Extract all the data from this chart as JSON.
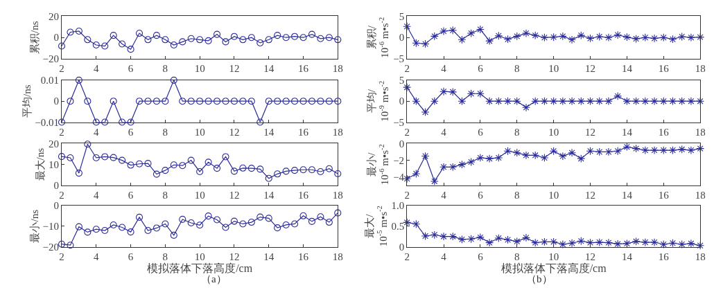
{
  "chart_data": [
    {
      "type": "line",
      "ylabel": "累积/ns",
      "color": "#2b2b9a",
      "marker": "circle",
      "xlim": [
        2,
        18
      ],
      "xticks": [
        2,
        4,
        6,
        8,
        10,
        12,
        14,
        16,
        18
      ],
      "ylim": [
        -20,
        20
      ],
      "yticks": [
        -20,
        0,
        20
      ],
      "x": [
        2,
        2.5,
        3,
        3.5,
        4,
        4.5,
        5,
        5.5,
        6,
        6.5,
        7,
        7.5,
        8,
        8.5,
        9,
        9.5,
        10,
        10.5,
        11,
        11.5,
        12,
        12.5,
        13,
        13.5,
        14,
        14.5,
        15,
        15.5,
        16,
        16.5,
        17,
        17.5,
        18
      ],
      "values": [
        -8,
        5,
        6,
        -2,
        -7,
        -8,
        2,
        -6,
        -11,
        4,
        -2,
        2,
        -2,
        -7,
        -4,
        -1,
        -2,
        -3,
        3,
        -4,
        1,
        -2,
        0,
        -5,
        -2,
        2,
        0,
        1,
        0,
        3,
        -1,
        0,
        -2
      ]
    },
    {
      "type": "line",
      "ylabel": "平均/ns",
      "color": "#2b2b9a",
      "marker": "circle",
      "xlim": [
        2,
        18
      ],
      "xticks": [
        2,
        4,
        6,
        8,
        10,
        12,
        14,
        16,
        18
      ],
      "ylim": [
        -0.01,
        0.01
      ],
      "yticks": [
        -0.01,
        0,
        0.01
      ],
      "x": [
        2,
        2.5,
        3,
        3.5,
        4,
        4.5,
        5,
        5.5,
        6,
        6.5,
        7,
        7.5,
        8,
        8.5,
        9,
        9.5,
        10,
        10.5,
        11,
        11.5,
        12,
        12.5,
        13,
        13.5,
        14,
        14.5,
        15,
        15.5,
        16,
        16.5,
        17,
        17.5,
        18
      ],
      "values": [
        -0.01,
        0,
        0.01,
        0,
        -0.01,
        -0.01,
        0,
        -0.01,
        -0.01,
        0,
        0,
        0,
        0,
        0.01,
        0,
        0,
        0,
        0,
        0,
        0,
        0,
        0,
        0,
        -0.01,
        0,
        0,
        0,
        0,
        0,
        0,
        0,
        0,
        0
      ]
    },
    {
      "type": "line",
      "ylabel": "最大/ns",
      "color": "#2b2b9a",
      "marker": "circle",
      "xlim": [
        2,
        18
      ],
      "xticks": [
        2,
        4,
        6,
        8,
        10,
        12,
        14,
        16,
        18
      ],
      "ylim": [
        0,
        20
      ],
      "yticks": [
        0,
        10,
        20
      ],
      "x": [
        2,
        2.5,
        3,
        3.5,
        4,
        4.5,
        5,
        5.5,
        6,
        6.5,
        7,
        7.5,
        8,
        8.5,
        9,
        9.5,
        10,
        10.5,
        11,
        11.5,
        12,
        12.5,
        13,
        13.5,
        14,
        14.5,
        15,
        15.5,
        16,
        16.5,
        17,
        17.5,
        18
      ],
      "values": [
        13.8,
        13.2,
        5.9,
        19.7,
        13.2,
        13.7,
        13.3,
        12,
        9.7,
        10.3,
        10.5,
        5.4,
        7.2,
        9.8,
        9.5,
        12,
        6.6,
        11.1,
        8.2,
        13.7,
        6.8,
        8.3,
        8.2,
        7.8,
        3.4,
        5.5,
        6.8,
        7.2,
        7.5,
        7.5,
        6.6,
        8,
        5.6
      ]
    },
    {
      "type": "line",
      "ylabel": "最小/ns",
      "xlabel": "模拟落体下落高度/cm",
      "annotations": [
        "（a）"
      ],
      "color": "#2b2b9a",
      "marker": "circle",
      "xlim": [
        2,
        18
      ],
      "xticks": [
        2,
        4,
        6,
        8,
        10,
        12,
        14,
        16,
        18
      ],
      "ylim": [
        -20,
        0
      ],
      "yticks": [
        -20,
        -10,
        0
      ],
      "x": [
        2,
        2.5,
        3,
        3.5,
        4,
        4.5,
        5,
        5.5,
        6,
        6.5,
        7,
        7.5,
        8,
        8.5,
        9,
        9.5,
        10,
        10.5,
        11,
        11.5,
        12,
        12.5,
        13,
        13.5,
        14,
        14.5,
        15,
        15.5,
        16,
        16.5,
        17,
        17.5,
        18
      ],
      "values": [
        -18.7,
        -19.2,
        -10.3,
        -12.9,
        -11.5,
        -12.1,
        -9.4,
        -10.6,
        -12.8,
        -5.7,
        -12.1,
        -10.9,
        -8.9,
        -14.4,
        -6.7,
        -8.4,
        -9.5,
        -5.1,
        -6.9,
        -10.6,
        -7.6,
        -8.9,
        -8.1,
        -5.6,
        -6.2,
        -10.8,
        -9.4,
        -8.9,
        -5,
        -7.7,
        -5.5,
        -8.1,
        -3.6
      ]
    },
    {
      "type": "line",
      "ylabel": "累积/\n10$^{-6}$ m•s$^{-2}$",
      "color": "#2b2b9a",
      "marker": "cross",
      "xlim": [
        2,
        18
      ],
      "xticks": [
        2,
        4,
        6,
        8,
        10,
        12,
        14,
        16,
        18
      ],
      "ylim": [
        -5,
        5
      ],
      "yticks": [
        -5,
        0,
        5
      ],
      "x": [
        2,
        2.5,
        3,
        3.5,
        4,
        4.5,
        5,
        5.5,
        6,
        6.5,
        7,
        7.5,
        8,
        8.5,
        9,
        9.5,
        10,
        10.5,
        11,
        11.5,
        12,
        12.5,
        13,
        13.5,
        14,
        14.5,
        15,
        15.5,
        16,
        16.5,
        17,
        17.5,
        18
      ],
      "values": [
        2.6,
        -1.3,
        -1.5,
        0.3,
        1.5,
        1.7,
        -0.5,
        1,
        1.9,
        -0.8,
        0.4,
        -0.4,
        0.3,
        1,
        0.5,
        0,
        0.1,
        0.3,
        -0.5,
        0.5,
        -0.2,
        0.2,
        0,
        0.6,
        0.1,
        -0.3,
        0,
        -0.2,
        0,
        -0.4,
        0.2,
        0,
        0.1
      ]
    },
    {
      "type": "line",
      "ylabel": "平均/\n10$^{-9}$ m•s$^{-2}$",
      "color": "#2b2b9a",
      "marker": "cross",
      "xlim": [
        2,
        18
      ],
      "xticks": [
        2,
        4,
        6,
        8,
        10,
        12,
        14,
        16,
        18
      ],
      "ylim": [
        -5,
        5
      ],
      "yticks": [
        -5,
        0,
        5
      ],
      "x": [
        2,
        2.5,
        3,
        3.5,
        4,
        4.5,
        5,
        5.5,
        6,
        6.5,
        7,
        7.5,
        8,
        8.5,
        9,
        9.5,
        10,
        10.5,
        11,
        11.5,
        12,
        12.5,
        13,
        13.5,
        14,
        14.5,
        15,
        15.5,
        16,
        16.5,
        17,
        17.5,
        18
      ],
      "values": [
        3.3,
        0,
        -2.6,
        0,
        2.3,
        2.2,
        0,
        1.8,
        1.8,
        0,
        0,
        0,
        0,
        -1.5,
        0,
        0,
        0,
        0,
        0,
        0,
        0,
        0,
        0,
        1.2,
        0,
        0,
        0,
        0,
        0,
        0,
        0,
        0,
        0
      ]
    },
    {
      "type": "line",
      "ylabel": "最小/\n10$^{-6}$ m•s$^{-2}$",
      "color": "#2b2b9a",
      "marker": "cross",
      "xlim": [
        2,
        18
      ],
      "xticks": [
        2,
        4,
        6,
        8,
        10,
        12,
        14,
        16,
        18
      ],
      "ylim": [
        -5,
        0
      ],
      "yticks": [
        -4,
        -2,
        0
      ],
      "x": [
        2,
        2.5,
        3,
        3.5,
        4,
        4.5,
        5,
        5.5,
        6,
        6.5,
        7,
        7.5,
        8,
        8.5,
        9,
        9.5,
        10,
        10.5,
        11,
        11.5,
        12,
        12.5,
        13,
        13.5,
        14,
        14.5,
        15,
        15.5,
        16,
        16.5,
        17,
        17.5,
        18
      ],
      "values": [
        -4.2,
        -3.6,
        -1.5,
        -4.5,
        -2.8,
        -2.8,
        -2.5,
        -2.2,
        -1.7,
        -1.8,
        -1.7,
        -0.9,
        -1.1,
        -1.4,
        -1.4,
        -1.7,
        -0.9,
        -1.5,
        -1.1,
        -1.8,
        -0.9,
        -1,
        -1,
        -0.9,
        -0.4,
        -0.6,
        -0.8,
        -0.8,
        -0.8,
        -0.8,
        -0.7,
        -0.8,
        -0.6
      ]
    },
    {
      "type": "line",
      "ylabel": "最大/\n10$^{-5}$ m•s$^{-2}$",
      "xlabel": "模拟落体下落高度/cm",
      "annotations": [
        "（b）"
      ],
      "color": "#2b2b9a",
      "marker": "cross",
      "xlim": [
        2,
        18
      ],
      "xticks": [
        2,
        4,
        6,
        8,
        10,
        12,
        14,
        16,
        18
      ],
      "ylim": [
        0,
        1
      ],
      "yticks": [
        0,
        0.5,
        {
          "value": 1,
          "label": "1.0"
        }
      ],
      "x": [
        2,
        2.5,
        3,
        3.5,
        4,
        4.5,
        5,
        5.5,
        6,
        6.5,
        7,
        7.5,
        8,
        8.5,
        9,
        9.5,
        10,
        10.5,
        11,
        11.5,
        12,
        12.5,
        13,
        13.5,
        14,
        14.5,
        15,
        15.5,
        16,
        16.5,
        17,
        17.5,
        18
      ],
      "values": [
        0.59,
        0.55,
        0.26,
        0.29,
        0.25,
        0.25,
        0.18,
        0.19,
        0.23,
        0.1,
        0.21,
        0.17,
        0.13,
        0.22,
        0.1,
        0.12,
        0.12,
        0.06,
        0.09,
        0.14,
        0.1,
        0.11,
        0.1,
        0.07,
        0.08,
        0.13,
        0.11,
        0.11,
        0.06,
        0.09,
        0.06,
        0.08,
        0.03
      ]
    }
  ]
}
